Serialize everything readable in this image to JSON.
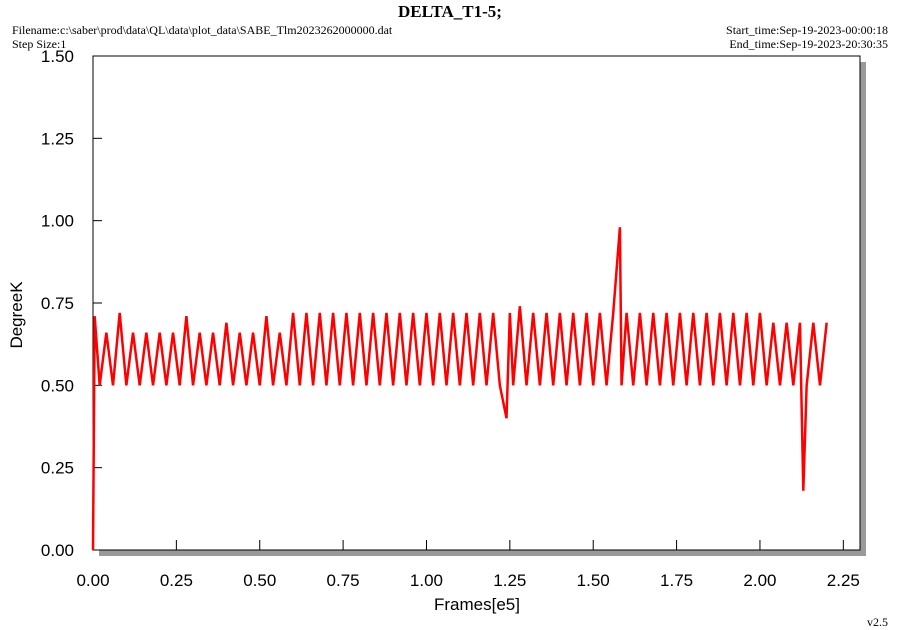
{
  "chart_data": {
    "type": "line",
    "title": "DELTA_T1-5;",
    "filename": "Filename:c:\\saber\\prod\\data\\QL\\data\\plot_data\\SABE_Tlm2023262000000.dat",
    "step_size": "Step Size:1",
    "start_time": "Start_time:Sep-19-2023-00:00:18",
    "end_time": "End_time:Sep-19-2023-20:30:35",
    "version": "v2.5",
    "x_label": "Frames[e5]",
    "y_label": "DegreeK",
    "color": "#ff0000",
    "x": [
      0,
      0.005,
      0.02,
      0.04,
      0.06,
      0.08,
      0.1,
      0.12,
      0.14,
      0.16,
      0.18,
      0.2,
      0.22,
      0.24,
      0.26,
      0.28,
      0.3,
      0.32,
      0.34,
      0.36,
      0.38,
      0.4,
      0.42,
      0.44,
      0.46,
      0.48,
      0.5,
      0.52,
      0.54,
      0.56,
      0.58,
      0.6,
      0.62,
      0.64,
      0.66,
      0.68,
      0.7,
      0.72,
      0.74,
      0.76,
      0.78,
      0.8,
      0.82,
      0.84,
      0.86,
      0.88,
      0.9,
      0.92,
      0.94,
      0.96,
      0.98,
      1.0,
      1.02,
      1.04,
      1.06,
      1.08,
      1.1,
      1.12,
      1.14,
      1.16,
      1.18,
      1.2,
      1.22,
      1.24,
      1.25,
      1.26,
      1.28,
      1.3,
      1.32,
      1.34,
      1.36,
      1.38,
      1.4,
      1.42,
      1.44,
      1.46,
      1.48,
      1.5,
      1.52,
      1.54,
      1.56,
      1.58,
      1.585,
      1.6,
      1.62,
      1.64,
      1.66,
      1.68,
      1.7,
      1.72,
      1.74,
      1.76,
      1.78,
      1.8,
      1.82,
      1.84,
      1.86,
      1.88,
      1.9,
      1.92,
      1.94,
      1.96,
      1.98,
      2.0,
      2.02,
      2.04,
      2.06,
      2.08,
      2.1,
      2.12,
      2.13,
      2.14,
      2.16,
      2.18,
      2.2
    ],
    "values": [
      0,
      0.71,
      0.5,
      0.66,
      0.5,
      0.72,
      0.5,
      0.66,
      0.5,
      0.66,
      0.5,
      0.66,
      0.5,
      0.66,
      0.5,
      0.71,
      0.5,
      0.66,
      0.5,
      0.66,
      0.5,
      0.69,
      0.5,
      0.66,
      0.5,
      0.66,
      0.5,
      0.71,
      0.5,
      0.66,
      0.5,
      0.72,
      0.5,
      0.72,
      0.5,
      0.72,
      0.5,
      0.72,
      0.5,
      0.72,
      0.5,
      0.72,
      0.5,
      0.72,
      0.5,
      0.72,
      0.5,
      0.72,
      0.5,
      0.72,
      0.5,
      0.72,
      0.5,
      0.72,
      0.5,
      0.72,
      0.5,
      0.72,
      0.5,
      0.72,
      0.5,
      0.72,
      0.5,
      0.4,
      0.72,
      0.5,
      0.74,
      0.5,
      0.72,
      0.5,
      0.72,
      0.5,
      0.72,
      0.5,
      0.72,
      0.5,
      0.72,
      0.5,
      0.72,
      0.5,
      0.72,
      0.98,
      0.5,
      0.72,
      0.5,
      0.72,
      0.5,
      0.72,
      0.5,
      0.72,
      0.5,
      0.72,
      0.5,
      0.72,
      0.5,
      0.72,
      0.5,
      0.72,
      0.5,
      0.72,
      0.5,
      0.72,
      0.5,
      0.72,
      0.5,
      0.69,
      0.5,
      0.69,
      0.5,
      0.69,
      0.18,
      0.5,
      0.69,
      0.5,
      0.69
    ],
    "xlim": [
      0,
      2.3
    ],
    "ylim": [
      0,
      1.5
    ],
    "xticks": [
      {
        "value": 0,
        "label": "0.00"
      },
      {
        "value": 0.25,
        "label": "0.25"
      },
      {
        "value": 0.5,
        "label": "0.50"
      },
      {
        "value": 0.75,
        "label": "0.75"
      },
      {
        "value": 1,
        "label": "1.00"
      },
      {
        "value": 1.25,
        "label": "1.25"
      },
      {
        "value": 1.5,
        "label": "1.50"
      },
      {
        "value": 1.75,
        "label": "1.75"
      },
      {
        "value": 2,
        "label": "2.00"
      },
      {
        "value": 2.25,
        "label": "2.25"
      }
    ],
    "yticks": [
      {
        "value": 0,
        "label": "0.00"
      },
      {
        "value": 0.25,
        "label": "0.25"
      },
      {
        "value": 0.5,
        "label": "0.50"
      },
      {
        "value": 0.75,
        "label": "0.75"
      },
      {
        "value": 1,
        "label": "1.00"
      },
      {
        "value": 1.25,
        "label": "1.25"
      },
      {
        "value": 1.5,
        "label": "1.50"
      }
    ]
  }
}
